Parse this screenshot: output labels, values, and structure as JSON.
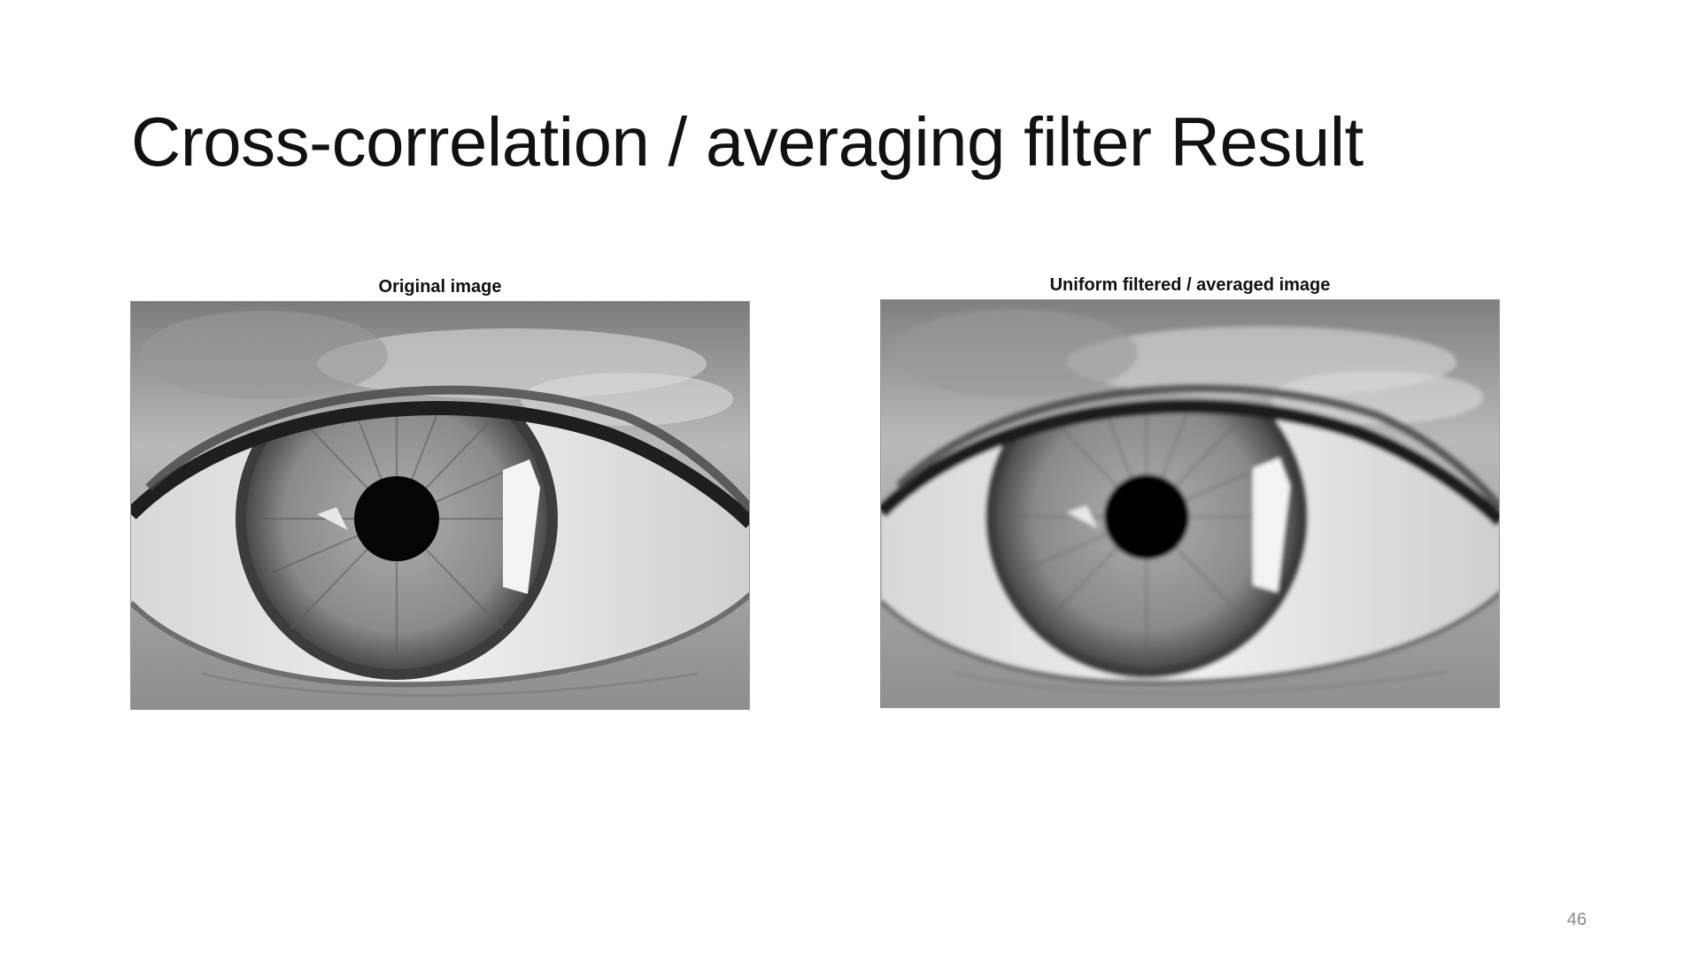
{
  "slide": {
    "title": "Cross-correlation / averaging filter Result",
    "page_number": "46"
  },
  "figures": [
    {
      "caption": "Original image",
      "style": "sharp grayscale eye photograph"
    },
    {
      "caption": "Uniform filtered / averaged image",
      "style": "blurred (mean-filtered) grayscale eye photograph"
    }
  ]
}
